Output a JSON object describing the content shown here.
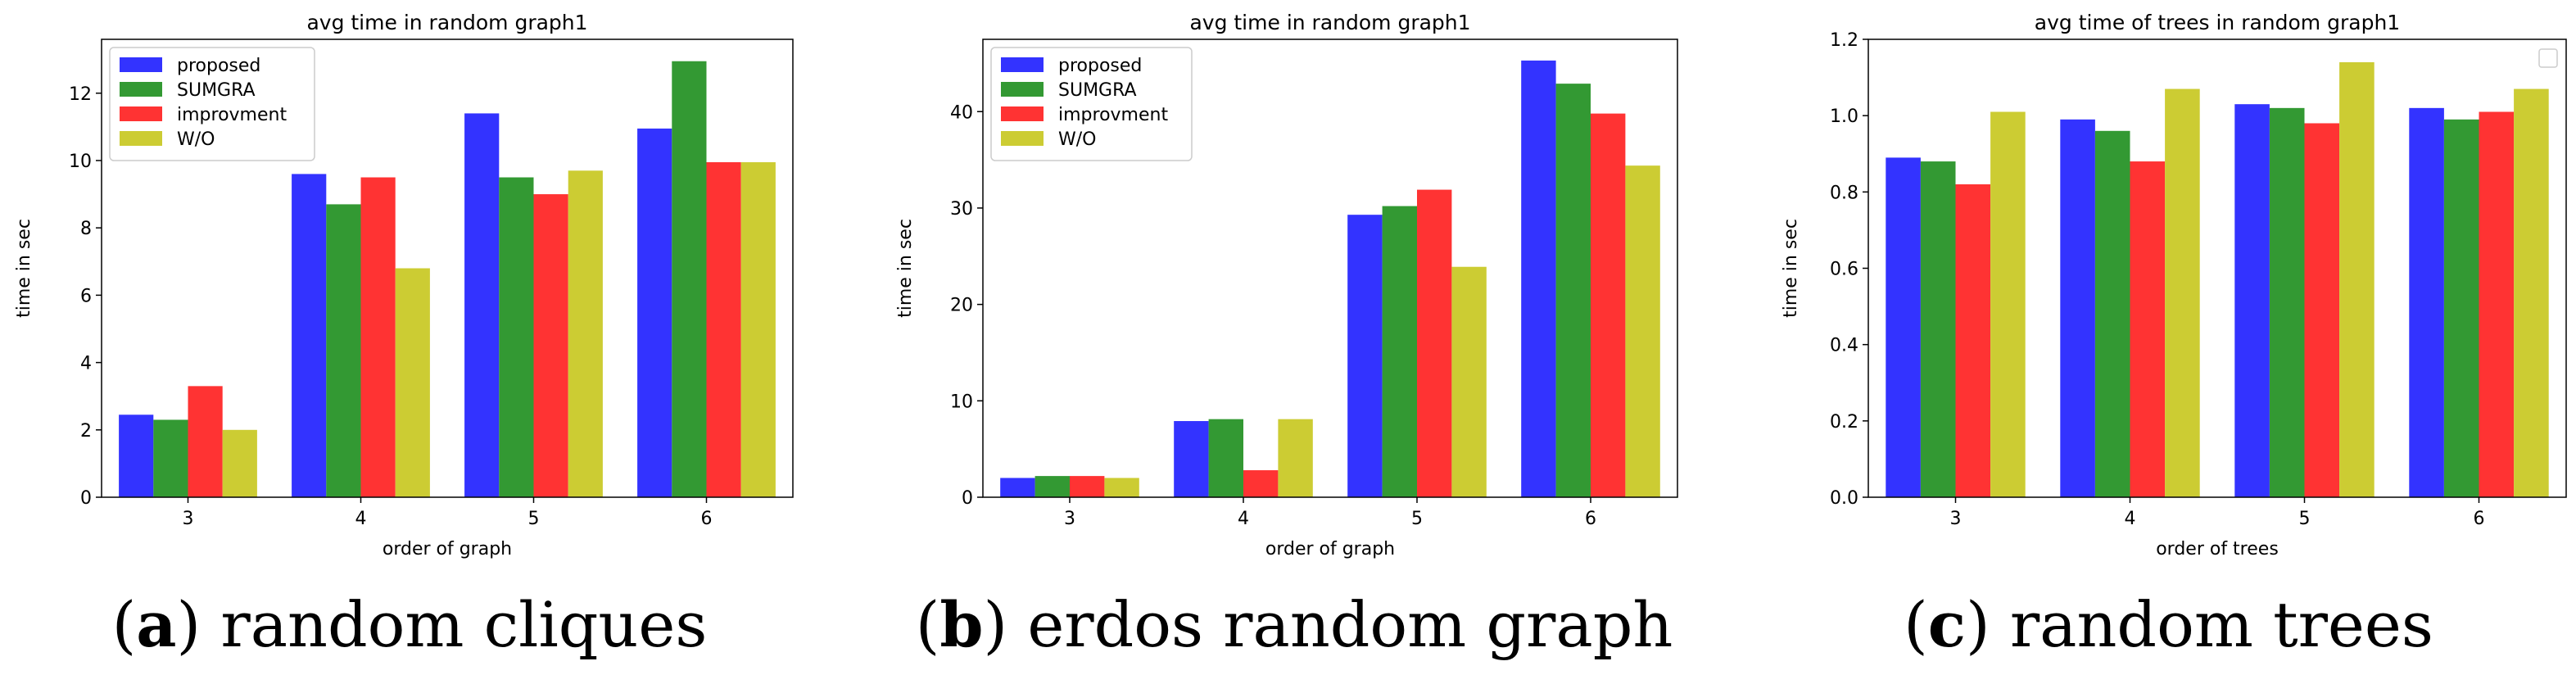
{
  "chart_data": [
    {
      "type": "bar",
      "title": "avg time in random graph1",
      "xlabel": "order of graph",
      "ylabel": "time in sec",
      "categories": [
        "3",
        "4",
        "5",
        "6"
      ],
      "ylim": [
        0,
        13.6
      ],
      "yticks": [
        0,
        2,
        4,
        6,
        8,
        10,
        12
      ],
      "legend": "top-left",
      "series": [
        {
          "name": "proposed",
          "color": "#3333ff",
          "values": [
            2.45,
            9.6,
            11.4,
            10.95
          ]
        },
        {
          "name": "SUMGRA",
          "color": "#339933",
          "values": [
            2.3,
            8.7,
            9.5,
            12.95
          ]
        },
        {
          "name": "improvment",
          "color": "#ff3333",
          "values": [
            3.3,
            9.5,
            9.0,
            9.95
          ]
        },
        {
          "name": "W/O",
          "color": "#cccc33",
          "values": [
            2.0,
            6.8,
            9.7,
            9.95
          ]
        }
      ],
      "caption_letter": "a",
      "caption_text": "random cliques"
    },
    {
      "type": "bar",
      "title": "avg time in random graph1",
      "xlabel": "order of graph",
      "ylabel": "time in sec",
      "categories": [
        "3",
        "4",
        "5",
        "6"
      ],
      "ylim": [
        0,
        47.5
      ],
      "yticks": [
        0,
        10,
        20,
        30,
        40
      ],
      "legend": "top-left",
      "series": [
        {
          "name": "proposed",
          "color": "#3333ff",
          "values": [
            2.0,
            7.9,
            29.3,
            45.3
          ]
        },
        {
          "name": "SUMGRA",
          "color": "#339933",
          "values": [
            2.2,
            8.1,
            30.2,
            42.9
          ]
        },
        {
          "name": "improvment",
          "color": "#ff3333",
          "values": [
            2.2,
            2.8,
            31.9,
            39.8
          ]
        },
        {
          "name": "W/O",
          "color": "#cccc33",
          "values": [
            2.0,
            8.1,
            23.9,
            34.4
          ]
        }
      ],
      "caption_letter": "b",
      "caption_text": "erdos random graph"
    },
    {
      "type": "bar",
      "title": "avg time of trees in random graph1",
      "xlabel": "order of trees",
      "ylabel": "time in sec",
      "categories": [
        "3",
        "4",
        "5",
        "6"
      ],
      "ylim": [
        0,
        1.2
      ],
      "yticks": [
        0.0,
        0.2,
        0.4,
        0.6,
        0.8,
        1.0,
        1.2
      ],
      "legend": "top-right",
      "series": [
        {
          "name": "",
          "color": "#3333ff",
          "values": [
            0.89,
            0.99,
            1.03,
            1.02
          ]
        },
        {
          "name": "",
          "color": "#339933",
          "values": [
            0.88,
            0.96,
            1.02,
            0.99
          ]
        },
        {
          "name": "",
          "color": "#ff3333",
          "values": [
            0.82,
            0.88,
            0.98,
            1.01
          ]
        },
        {
          "name": "",
          "color": "#cccc33",
          "values": [
            1.01,
            1.07,
            1.14,
            1.07
          ]
        }
      ],
      "caption_letter": "c",
      "caption_text": "random trees"
    }
  ]
}
